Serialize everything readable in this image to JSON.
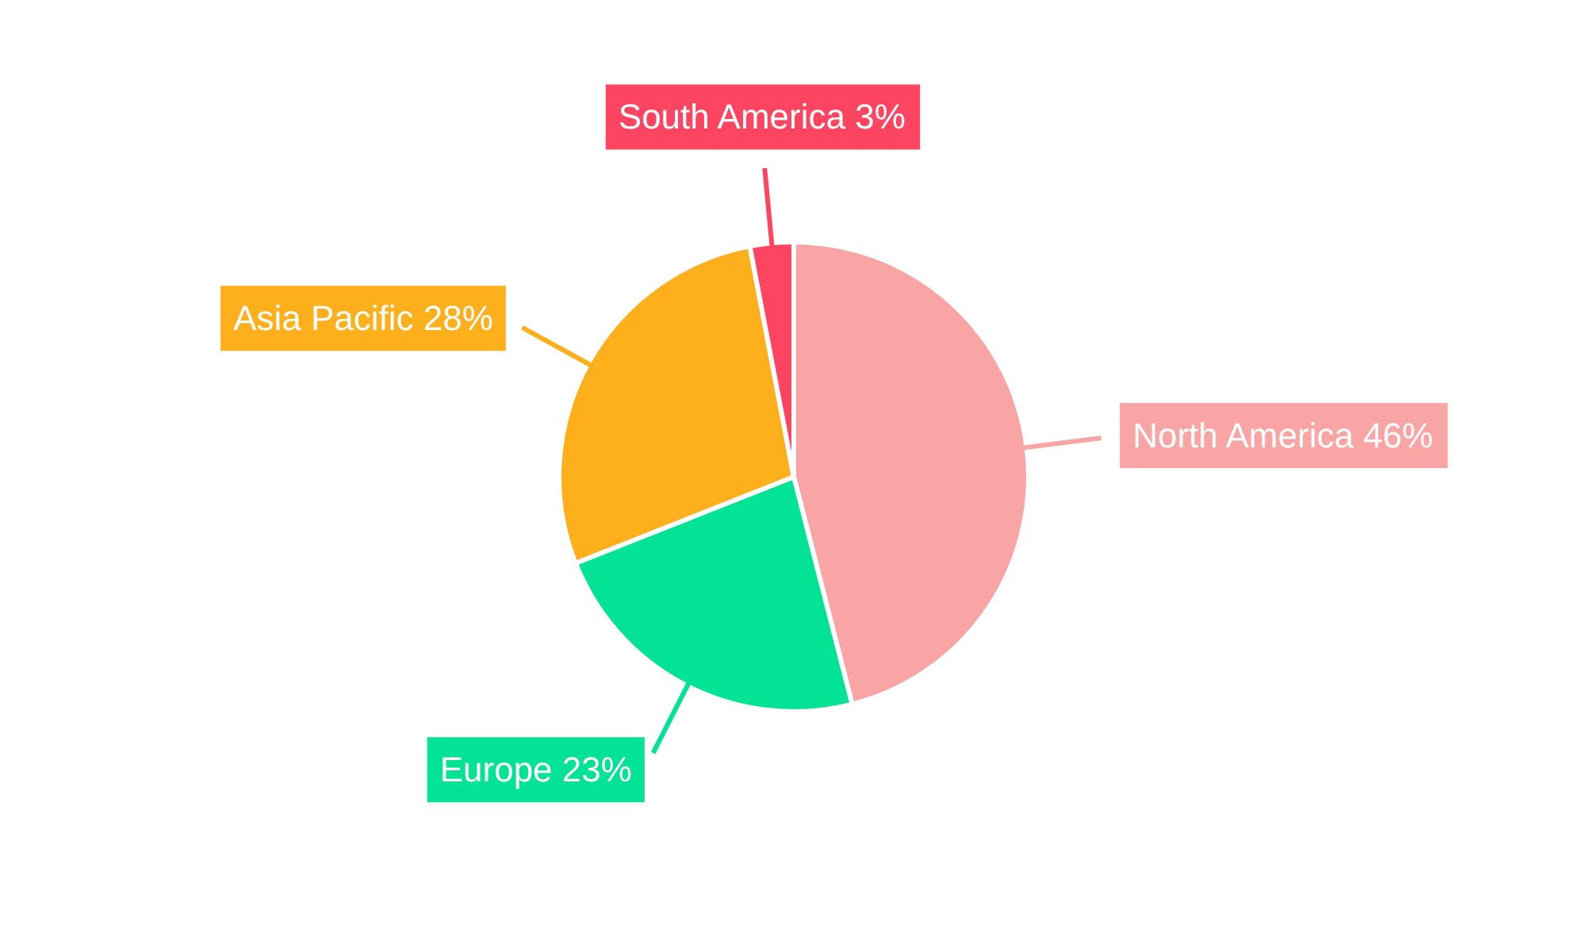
{
  "chart_data": {
    "type": "pie",
    "categories": [
      "North America",
      "Europe",
      "Asia Pacific",
      "South America"
    ],
    "values": [
      46,
      23,
      28,
      3
    ],
    "value_labels": [
      "46%",
      "23%",
      "28%",
      "3%"
    ],
    "colors": [
      "#f9a5a5",
      "#02e396",
      "#fdb01b",
      "#fd4561"
    ]
  }
}
